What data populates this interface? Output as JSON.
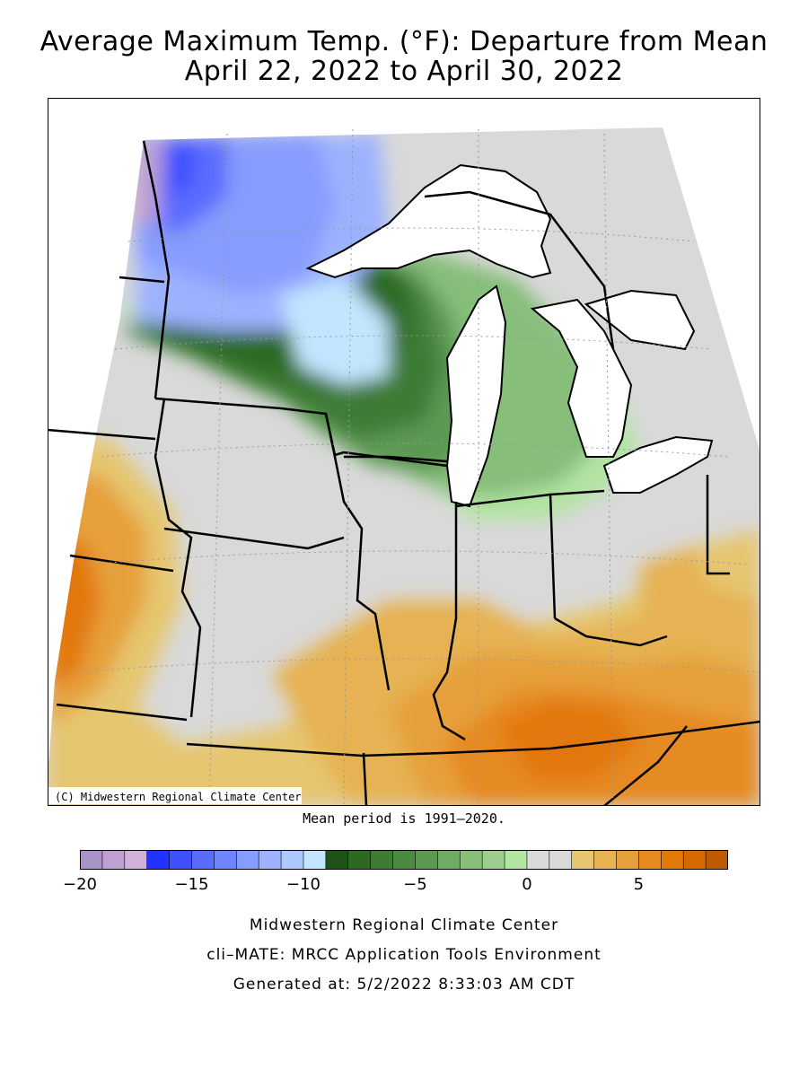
{
  "title": {
    "line1": "Average Maximum Temp. (°F): Departure from Mean",
    "line2": "April 22, 2022 to April 30, 2022"
  },
  "map": {
    "copyright": "(C) Midwestern Regional Climate Center",
    "region": "Upper Midwest / Great Lakes"
  },
  "mean_period": "Mean period is 1991–2020.",
  "colorbar": {
    "bins": [
      {
        "from": -20,
        "color": "#a994c8"
      },
      {
        "from": -19,
        "color": "#bea0d2"
      },
      {
        "from": -18,
        "color": "#d2b0dc"
      },
      {
        "from": -17,
        "color": "#2232ff"
      },
      {
        "from": -16,
        "color": "#3e50ff"
      },
      {
        "from": -15,
        "color": "#5a6cff"
      },
      {
        "from": -14,
        "color": "#6f84ff"
      },
      {
        "from": -13,
        "color": "#879cff"
      },
      {
        "from": -12,
        "color": "#9cb2ff"
      },
      {
        "from": -11,
        "color": "#acc8ff"
      },
      {
        "from": -10,
        "color": "#c2e6ff"
      },
      {
        "from": -9,
        "color": "#1e5216"
      },
      {
        "from": -8,
        "color": "#2c6a22"
      },
      {
        "from": -7,
        "color": "#3e7c34"
      },
      {
        "from": -6,
        "color": "#4c8a42"
      },
      {
        "from": -5,
        "color": "#5c9a52"
      },
      {
        "from": -4,
        "color": "#70ac66"
      },
      {
        "from": -3,
        "color": "#86be7a"
      },
      {
        "from": -2,
        "color": "#9ccc8e"
      },
      {
        "from": -1,
        "color": "#b2e4a2"
      },
      {
        "from": 0,
        "color": "#d9d9d9"
      },
      {
        "from": 1,
        "color": "#dadada"
      },
      {
        "from": 2,
        "color": "#e6c670"
      },
      {
        "from": 3,
        "color": "#e6b252"
      },
      {
        "from": 4,
        "color": "#e6a03a"
      },
      {
        "from": 5,
        "color": "#e68a20"
      },
      {
        "from": 6,
        "color": "#e27808"
      },
      {
        "from": 7,
        "color": "#d46a00"
      },
      {
        "from": 8,
        "color": "#c05a00"
      }
    ],
    "tick_labels": [
      "−20",
      "−15",
      "−10",
      "−5",
      "0",
      "5"
    ],
    "tick_values": [
      -20,
      -15,
      -10,
      -5,
      0,
      5
    ],
    "min": -20,
    "max": 8
  },
  "footer": {
    "line1": "Midwestern Regional Climate Center",
    "line2": "cli–MATE: MRCC Application Tools Environment",
    "line3": "Generated at: 5/2/2022 8:33:03 AM CDT"
  }
}
